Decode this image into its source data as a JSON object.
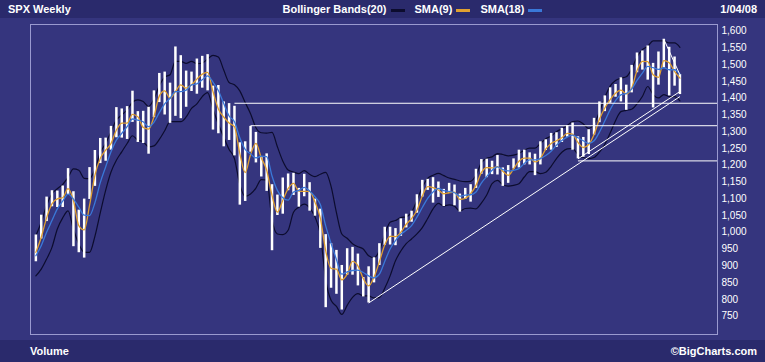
{
  "chart_data": {
    "type": "range",
    "title": "SPX Weekly",
    "date": "1/04/08",
    "footer": "Volume",
    "credit": "©BigCharts.com",
    "color": "#ffffff",
    "tick_labels": "y",
    "grid": false,
    "x": [
      0,
      1,
      2,
      3,
      4,
      5,
      6,
      7,
      8,
      9,
      10,
      11,
      12,
      13,
      14,
      15,
      16,
      17,
      18,
      19,
      20,
      21,
      22,
      23,
      24,
      25,
      26,
      27,
      28,
      29,
      30,
      31,
      32,
      33,
      34,
      35,
      36,
      37,
      38,
      39,
      40,
      41,
      42,
      43,
      44,
      45,
      46,
      47,
      48,
      49,
      50,
      51,
      52,
      53,
      54,
      55,
      56,
      57,
      58,
      59,
      60,
      61,
      62,
      63,
      64,
      65,
      66,
      67,
      68,
      69,
      70,
      71,
      72,
      73,
      74,
      75,
      76,
      77,
      78,
      79,
      80,
      81,
      82,
      83,
      84,
      85,
      86,
      87,
      88,
      89,
      90,
      91,
      92,
      93,
      94,
      95,
      96,
      97,
      98,
      99,
      100,
      101,
      102,
      103,
      104,
      105,
      106,
      107,
      108,
      109,
      110,
      111,
      112,
      113,
      114,
      115,
      116,
      117,
      118,
      119,
      120
    ],
    "high": [
      992,
      1051,
      1105,
      1124,
      1123,
      1138,
      1190,
      1121,
      1066,
      1099,
      1193,
      1244,
      1280,
      1281,
      1316,
      1372,
      1368,
      1375,
      1421,
      1360,
      1361,
      1373,
      1422,
      1474,
      1478,
      1445,
      1553,
      1527,
      1481,
      1478,
      1517,
      1525,
      1530,
      1436,
      1438,
      1389,
      1384,
      1376,
      1267,
      1270,
      1316,
      1298,
      1225,
      1234,
      1142,
      1111,
      1162,
      1174,
      1176,
      1131,
      1173,
      1148,
      1099,
      1069,
      993,
      966,
      946,
      901,
      951,
      955,
      935,
      865,
      897,
      924,
      966,
      1015,
      1015,
      1011,
      1040,
      1054,
      1063,
      1112,
      1155,
      1158,
      1163,
      1150,
      1128,
      1146,
      1141,
      1114,
      1131,
      1142,
      1188,
      1217,
      1218,
      1212,
      1229,
      1192,
      1199,
      1219,
      1245,
      1245,
      1237,
      1233,
      1270,
      1276,
      1295,
      1297,
      1310,
      1318,
      1326,
      1285,
      1283,
      1306,
      1340,
      1389,
      1407,
      1431,
      1441,
      1461,
      1439,
      1498,
      1535,
      1541,
      1556,
      1504,
      1538,
      1576,
      1552,
      1523,
      1471
    ],
    "low": [
      912,
      980,
      1032,
      1076,
      1074,
      1074,
      1112,
      957,
      939,
      923,
      1098,
      1137,
      1205,
      1212,
      1245,
      1282,
      1281,
      1277,
      1328,
      1268,
      1265,
      1233,
      1342,
      1387,
      1350,
      1325,
      1346,
      1339,
      1373,
      1420,
      1412,
      1430,
      1422,
      1305,
      1294,
      1255,
      1274,
      1228,
      1081,
      1092,
      1239,
      1207,
      1165,
      1122,
      945,
      1050,
      1054,
      1124,
      1110,
      1075,
      1106,
      1063,
      1048,
      952,
      775,
      833,
      815,
      768,
      872,
      872,
      840,
      807,
      789,
      849,
      901,
      961,
      962,
      960,
      988,
      1013,
      1030,
      1057,
      1105,
      1125,
      1087,
      1104,
      1077,
      1117,
      1079,
      1060,
      1098,
      1090,
      1131,
      1173,
      1163,
      1172,
      1171,
      1137,
      1146,
      1189,
      1192,
      1201,
      1201,
      1169,
      1201,
      1244,
      1245,
      1253,
      1268,
      1284,
      1245,
      1219,
      1224,
      1232,
      1290,
      1327,
      1360,
      1385,
      1403,
      1389,
      1364,
      1416,
      1476,
      1484,
      1454,
      1371,
      1439,
      1490,
      1407,
      1436,
      1411
    ],
    "series": [
      {
        "name": "Bollinger Bands(20)",
        "color": "#0c0c2e",
        "upper": [
          990,
          1030,
          1080,
          1115,
          1130,
          1143,
          1164,
          1189,
          1185,
          1161,
          1160,
          1188,
          1238,
          1265,
          1300,
          1335,
          1350,
          1365,
          1388,
          1395,
          1390,
          1375,
          1398,
          1437,
          1463,
          1470,
          1510,
          1510,
          1504,
          1510,
          1503,
          1505,
          1517,
          1528,
          1523,
          1484,
          1447,
          1440,
          1422,
          1387,
          1354,
          1312,
          1297,
          1296,
          1298,
          1255,
          1213,
          1186,
          1180,
          1175,
          1184,
          1173,
          1166,
          1173,
          1179,
          1137,
          1059,
          995,
          982,
          966,
          957,
          950,
          930,
          924,
          945,
          993,
          1030,
          1035,
          1044,
          1046,
          1060,
          1095,
          1134,
          1161,
          1170,
          1176,
          1169,
          1162,
          1158,
          1153,
          1151,
          1152,
          1170,
          1207,
          1221,
          1225,
          1235,
          1232,
          1228,
          1230,
          1235,
          1245,
          1251,
          1251,
          1265,
          1279,
          1287,
          1300,
          1309,
          1319,
          1330,
          1332,
          1323,
          1310,
          1323,
          1359,
          1402,
          1436,
          1453,
          1460,
          1464,
          1487,
          1523,
          1545,
          1555,
          1571,
          1571,
          1571,
          1565,
          1565,
          1552
        ],
        "lower": [
          870,
          890,
          920,
          955,
          1010,
          1043,
          1064,
          1009,
          965,
          941,
          940,
          988,
          1058,
          1125,
          1180,
          1215,
          1240,
          1265,
          1288,
          1275,
          1270,
          1255,
          1258,
          1277,
          1303,
          1330,
          1330,
          1330,
          1344,
          1370,
          1383,
          1405,
          1417,
          1368,
          1323,
          1284,
          1247,
          1220,
          1142,
          1107,
          1114,
          1132,
          1157,
          1156,
          1038,
          995,
          993,
          1006,
          1060,
          1075,
          1084,
          1073,
          1046,
          993,
          859,
          797,
          779,
          755,
          782,
          806,
          817,
          810,
          810,
          804,
          805,
          833,
          870,
          915,
          944,
          966,
          980,
          995,
          1014,
          1041,
          1070,
          1086,
          1079,
          1082,
          1078,
          1063,
          1071,
          1072,
          1070,
          1087,
          1111,
          1145,
          1155,
          1142,
          1138,
          1140,
          1145,
          1165,
          1181,
          1181,
          1175,
          1179,
          1197,
          1220,
          1239,
          1249,
          1250,
          1232,
          1223,
          1220,
          1223,
          1239,
          1262,
          1296,
          1333,
          1360,
          1364,
          1367,
          1383,
          1405,
          1435,
          1411,
          1401,
          1411,
          1405,
          1405,
          1392
        ]
      },
      {
        "name": "SMA(9)",
        "color": "#e0a030",
        "values": [
          940,
          985,
          1043,
          1085,
          1100,
          1103,
          1130,
          1095,
          1020,
          1007,
          1080,
          1170,
          1220,
          1245,
          1265,
          1305,
          1326,
          1326,
          1352,
          1345,
          1313,
          1308,
          1345,
          1407,
          1422,
          1400,
          1420,
          1440,
          1430,
          1440,
          1457,
          1472,
          1477,
          1420,
          1368,
          1344,
          1326,
          1315,
          1235,
          1178,
          1232,
          1265,
          1222,
          1186,
          1110,
          1060,
          1095,
          1130,
          1146,
          1123,
          1122,
          1122,
          1090,
          1042,
          945,
          892,
          890,
          858,
          875,
          913,
          900,
          862,
          840,
          866,
          912,
          962,
          988,
          987,
          1000,
          1024,
          1041,
          1066,
          1108,
          1136,
          1133,
          1126,
          1115,
          1118,
          1120,
          1098,
          1101,
          1115,
          1140,
          1178,
          1193,
          1192,
          1196,
          1182,
          1170,
          1189,
          1212,
          1221,
          1221,
          1210,
          1220,
          1248,
          1265,
          1273,
          1282,
          1295,
          1293,
          1268,
          1253,
          1262,
          1292,
          1337,
          1371,
          1396,
          1415,
          1424,
          1413,
          1430,
          1482,
          1510,
          1509,
          1470,
          1462,
          1512,
          1506,
          1480,
          1460
        ]
      },
      {
        "name": "SMA(18)",
        "color": "#3a78d8",
        "values": [
          930,
          960,
          1000,
          1035,
          1070,
          1093,
          1114,
          1099,
          1075,
          1051,
          1050,
          1088,
          1148,
          1195,
          1240,
          1275,
          1295,
          1315,
          1338,
          1335,
          1330,
          1315,
          1328,
          1357,
          1383,
          1400,
          1420,
          1420,
          1424,
          1440,
          1443,
          1455,
          1467,
          1448,
          1423,
          1384,
          1347,
          1330,
          1282,
          1247,
          1234,
          1222,
          1227,
          1226,
          1168,
          1125,
          1103,
          1096,
          1120,
          1125,
          1134,
          1123,
          1106,
          1083,
          1019,
          967,
          919,
          875,
          882,
          886,
          887,
          880,
          870,
          864,
          875,
          913,
          950,
          975,
          994,
          1006,
          1020,
          1045,
          1074,
          1101,
          1120,
          1131,
          1124,
          1122,
          1118,
          1108,
          1111,
          1112,
          1120,
          1147,
          1166,
          1185,
          1195,
          1187,
          1183,
          1185,
          1190,
          1205,
          1216,
          1216,
          1220,
          1229,
          1242,
          1260,
          1274,
          1284,
          1290,
          1282,
          1273,
          1265,
          1273,
          1299,
          1332,
          1366,
          1393,
          1410,
          1414,
          1427,
          1453,
          1475,
          1495,
          1491,
          1486,
          1491,
          1485,
          1485,
          1472
        ]
      }
    ],
    "lines": [
      {
        "x1": 62,
        "y1": 789,
        "x2": 120,
        "y2": 1405
      },
      {
        "x1": 101,
        "y1": 1219,
        "x2": 120,
        "y2": 1420
      },
      {
        "x1": 117,
        "y1": 1576,
        "x2": 120,
        "y2": 1470
      },
      {
        "x1": 37,
        "y1": 1385,
        "x2": 127,
        "y2": 1385
      },
      {
        "x1": 40,
        "y1": 1318,
        "x2": 127,
        "y2": 1318
      },
      {
        "x1": 101,
        "y1": 1213,
        "x2": 127,
        "y2": 1213
      }
    ],
    "xlim": [
      -1,
      127
    ],
    "ylim": [
      695,
      1620
    ],
    "yticks": [
      750,
      800,
      850,
      900,
      950,
      {
        "value": 1000,
        "label": "1,000"
      },
      {
        "value": 1050,
        "label": "1,050"
      },
      {
        "value": 1100,
        "label": "1,100"
      },
      {
        "value": 1150,
        "label": "1,150"
      },
      {
        "value": 1200,
        "label": "1,200"
      },
      {
        "value": 1250,
        "label": "1,250"
      },
      {
        "value": 1300,
        "label": "1,300"
      },
      {
        "value": 1350,
        "label": "1,350"
      },
      {
        "value": 1400,
        "label": "1,400"
      },
      {
        "value": 1450,
        "label": "1,450"
      },
      {
        "value": 1500,
        "label": "1,500"
      },
      {
        "value": 1550,
        "label": "1,550"
      },
      {
        "value": 1600,
        "label": "1,600"
      }
    ]
  }
}
